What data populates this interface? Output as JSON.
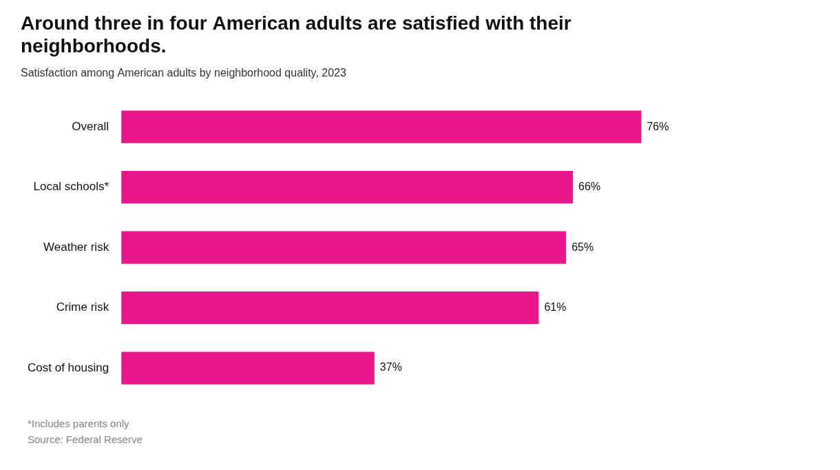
{
  "chart_data": {
    "type": "bar",
    "orientation": "horizontal",
    "title": "Around three in four American adults are satisfied with their\nneighborhoods.",
    "subtitle": "Satisfaction among American adults by neighborhood quality, 2023",
    "categories": [
      "Overall",
      "Local schools*",
      "Weather risk",
      "Crime risk",
      "Cost of housing"
    ],
    "values": [
      76,
      66,
      65,
      61,
      37
    ],
    "value_labels": [
      "76%",
      "66%",
      "65%",
      "61%",
      "37%"
    ],
    "data_labels": true,
    "color": "#E8188A",
    "xlim": [
      0,
      100
    ],
    "tick_labels": "y",
    "grid": false,
    "footnote": "*Includes parents only",
    "source": "Source: Federal Reserve"
  }
}
